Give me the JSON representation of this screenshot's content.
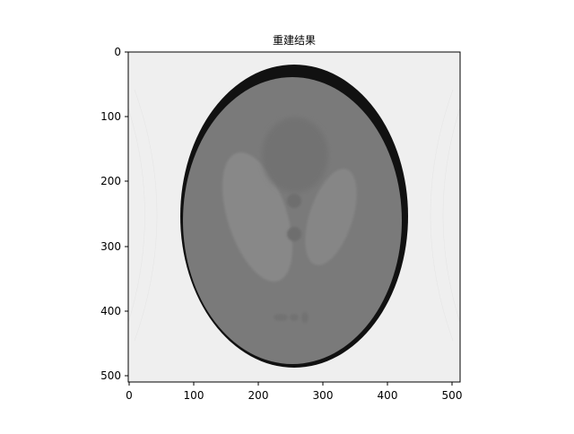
{
  "figure": {
    "title": "重建结果",
    "x_ticks": [
      "0",
      "100",
      "200",
      "300",
      "400",
      "500"
    ],
    "y_ticks": [
      "0",
      "100",
      "200",
      "300",
      "400",
      "500"
    ],
    "x_range": [
      0,
      512
    ],
    "y_range": [
      0,
      512
    ],
    "y_inverted": true,
    "image": {
      "description": "Shepp-Logan phantom CT reconstruction",
      "colormap": "grayscale",
      "colors": {
        "background": "#efefef",
        "outer_ring": "#111111",
        "brain": "#7a7a7a",
        "bright_regions": "#8a8a8a",
        "dark_spots": "#6c6c6c"
      }
    }
  }
}
